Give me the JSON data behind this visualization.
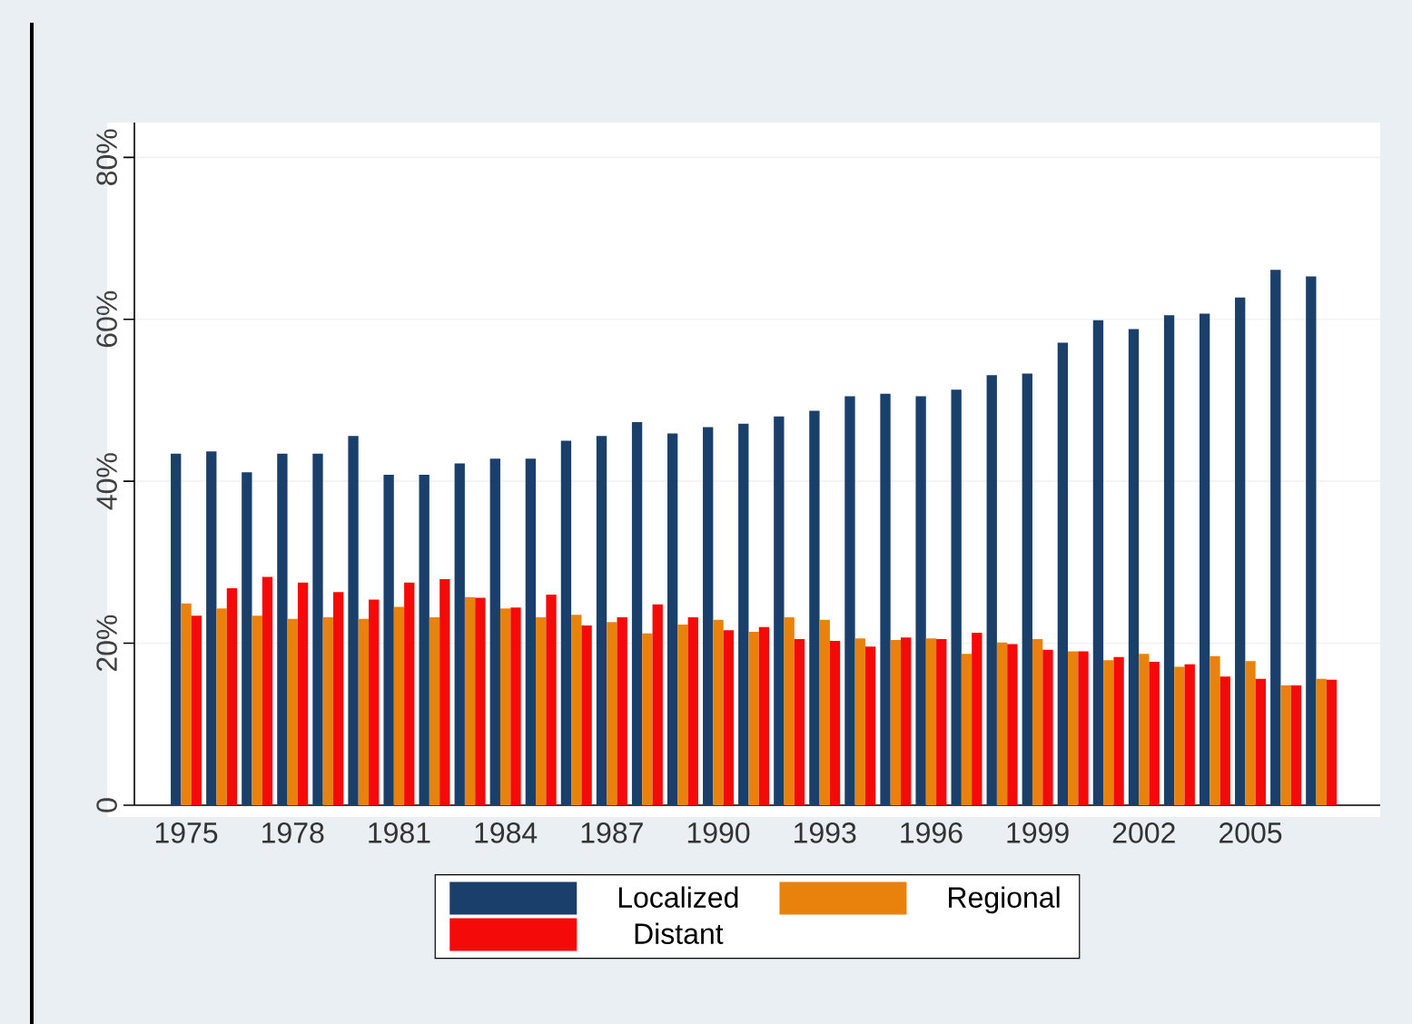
{
  "chart_data": {
    "type": "bar",
    "categories": [
      "1975",
      null,
      null,
      "1978",
      null,
      null,
      "1981",
      null,
      null,
      "1984",
      null,
      null,
      "1987",
      null,
      null,
      "1990",
      null,
      null,
      "1993",
      null,
      null,
      "1996",
      null,
      null,
      "1999",
      null,
      null,
      "2002",
      null,
      null,
      "2005",
      null,
      null
    ],
    "series": [
      {
        "name": "Localized",
        "color": "#1a3f6b",
        "values": [
          43.4,
          43.7,
          41.1,
          43.4,
          43.4,
          45.6,
          40.8,
          40.8,
          42.2,
          42.8,
          42.8,
          45.0,
          45.6,
          47.3,
          45.9,
          46.7,
          47.1,
          48.0,
          48.7,
          50.5,
          50.8,
          50.5,
          51.3,
          53.1,
          53.3,
          57.1,
          59.9,
          58.8,
          60.5,
          60.7,
          62.7,
          66.1,
          65.3
        ]
      },
      {
        "name": "Regional",
        "color": "#e8820c",
        "values": [
          24.9,
          24.3,
          23.4,
          23.0,
          23.2,
          23.0,
          24.5,
          23.2,
          25.7,
          24.3,
          23.2,
          23.5,
          22.6,
          21.2,
          22.3,
          22.9,
          21.4,
          23.2,
          22.9,
          20.6,
          20.4,
          20.6,
          18.7,
          20.1,
          20.5,
          19.0,
          17.9,
          18.7,
          17.1,
          18.4,
          17.8,
          14.8,
          15.6
        ]
      },
      {
        "name": "Distant",
        "color": "#f50a0a",
        "values": [
          23.4,
          26.8,
          28.2,
          27.5,
          26.3,
          25.4,
          27.5,
          27.9,
          25.6,
          24.4,
          26.0,
          22.2,
          23.2,
          24.8,
          23.2,
          21.6,
          22.0,
          20.5,
          20.3,
          19.6,
          20.7,
          20.5,
          21.3,
          19.9,
          19.2,
          19.0,
          18.3,
          17.7,
          17.4,
          15.9,
          15.6,
          14.8,
          15.5
        ]
      }
    ],
    "ylim": [
      0,
      84.3
    ],
    "yticks": [
      0,
      {
        "value": 20,
        "label": "20%"
      },
      {
        "value": 40,
        "label": "40%"
      },
      {
        "value": 60,
        "label": "60%"
      },
      {
        "value": 80,
        "label": "80%"
      }
    ],
    "grid": "y",
    "legend": "bottom"
  }
}
